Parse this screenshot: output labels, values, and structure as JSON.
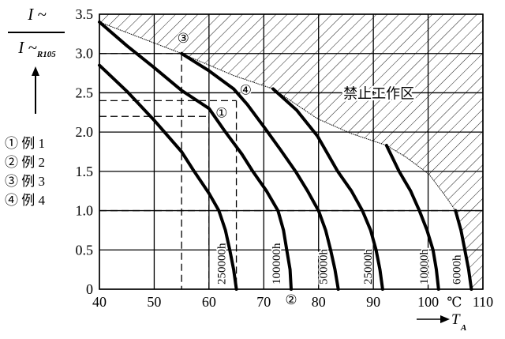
{
  "chart_data": {
    "type": "line",
    "ylabel": {
      "numerator": "I ~",
      "denominator": "I ~",
      "denominator_sub": "R105"
    },
    "xlabel": "T",
    "xlabel_sub": "A",
    "x_unit": "℃",
    "xlim": [
      40,
      110
    ],
    "ylim": [
      0,
      3.5
    ],
    "x_ticks": [
      "40",
      "50",
      "60",
      "70",
      "80",
      "90",
      "100",
      "110"
    ],
    "y_ticks": [
      "0",
      "0.5",
      "1.0",
      "1.5",
      "2.0",
      "2.5",
      "3.0",
      "3.5"
    ],
    "grid": true,
    "series": [
      {
        "name": "250000h",
        "points": [
          [
            40,
            2.85
          ],
          [
            45,
            2.52
          ],
          [
            50,
            2.15
          ],
          [
            55,
            1.75
          ],
          [
            57.3,
            1.5
          ],
          [
            60,
            1.22
          ],
          [
            61.8,
            1.0
          ],
          [
            63,
            0.75
          ],
          [
            63.8,
            0.5
          ],
          [
            64.5,
            0.25
          ],
          [
            65,
            0
          ]
        ]
      },
      {
        "name": "100000h",
        "points": [
          [
            40,
            3.4
          ],
          [
            45,
            3.1
          ],
          [
            50,
            2.82
          ],
          [
            55,
            2.53
          ],
          [
            60,
            2.3
          ],
          [
            63,
            2.0
          ],
          [
            66,
            1.72
          ],
          [
            68,
            1.5
          ],
          [
            70.5,
            1.25
          ],
          [
            72.6,
            1.0
          ],
          [
            73.6,
            0.75
          ],
          [
            74.2,
            0.5
          ],
          [
            74.8,
            0.25
          ],
          [
            75,
            0
          ]
        ]
      },
      {
        "name": "50000h",
        "points": [
          [
            55,
            3.0
          ],
          [
            60,
            2.78
          ],
          [
            64.5,
            2.55
          ],
          [
            67,
            2.35
          ],
          [
            70.2,
            2.05
          ],
          [
            73,
            1.78
          ],
          [
            75.8,
            1.5
          ],
          [
            78,
            1.25
          ],
          [
            80,
            1.0
          ],
          [
            81.3,
            0.75
          ],
          [
            82.2,
            0.5
          ],
          [
            83,
            0.25
          ],
          [
            83.6,
            0
          ]
        ]
      },
      {
        "name": "25000h",
        "points": [
          [
            71.7,
            2.55
          ],
          [
            76,
            2.28
          ],
          [
            79.8,
            1.95
          ],
          [
            83.5,
            1.5
          ],
          [
            86,
            1.25
          ],
          [
            88,
            1.0
          ],
          [
            89.5,
            0.75
          ],
          [
            90.5,
            0.5
          ],
          [
            91.2,
            0.25
          ],
          [
            91.7,
            0
          ]
        ]
      },
      {
        "name": "10000h",
        "points": [
          [
            92.4,
            1.83
          ],
          [
            94.7,
            1.5
          ],
          [
            96.8,
            1.25
          ],
          [
            98.4,
            1.0
          ],
          [
            99.8,
            0.75
          ],
          [
            100.9,
            0.5
          ],
          [
            101.5,
            0.25
          ],
          [
            101.9,
            0
          ]
        ]
      },
      {
        "name": "6000h",
        "points": [
          [
            105,
            1.0
          ],
          [
            106,
            0.75
          ],
          [
            106.7,
            0.5
          ],
          [
            107.4,
            0.25
          ],
          [
            107.9,
            0
          ]
        ]
      }
    ],
    "forbidden_zone": {
      "label": "禁止工作区",
      "boundary": [
        [
          40,
          3.4
        ],
        [
          55,
          3.0
        ],
        [
          64.5,
          2.72
        ],
        [
          71.7,
          2.55
        ],
        [
          79.8,
          2.17
        ],
        [
          86,
          1.98
        ],
        [
          92.4,
          1.83
        ],
        [
          96,
          1.68
        ],
        [
          100.2,
          1.46
        ],
        [
          103,
          1.2
        ],
        [
          105,
          1.0
        ]
      ]
    },
    "reference_lines": {
      "horizontal": [
        {
          "y": 3.0,
          "x_to": 55
        },
        {
          "y": 2.4,
          "x_to": 65
        },
        {
          "y": 2.2,
          "x_to": 60
        },
        {
          "y": 1.0,
          "x_to": 110
        }
      ],
      "vertical": [
        {
          "x": 55,
          "y_from": 3.0
        },
        {
          "x": 65,
          "y_from": 2.4
        },
        {
          "x": 60,
          "y_from": 2.2
        }
      ]
    },
    "markers": [
      {
        "label": "①",
        "x": 62.3,
        "y": 2.25
      },
      {
        "label": "②",
        "x": 75,
        "y": -0.13
      },
      {
        "label": "③",
        "x": 55.3,
        "y": 3.2
      },
      {
        "label": "④",
        "x": 66.7,
        "y": 2.54
      }
    ],
    "legend": [
      {
        "symbol": "①",
        "text": "例 1"
      },
      {
        "symbol": "②",
        "text": "例 2"
      },
      {
        "symbol": "③",
        "text": "例 3"
      },
      {
        "symbol": "④",
        "text": "例 4"
      }
    ]
  }
}
